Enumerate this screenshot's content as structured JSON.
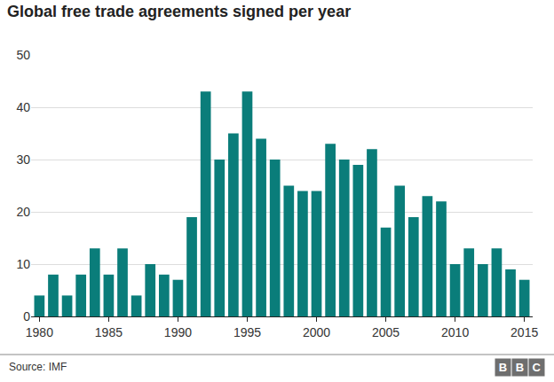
{
  "chart_data": {
    "type": "bar",
    "title": "Global free trade agreements signed per year",
    "x": [
      1980,
      1981,
      1982,
      1983,
      1984,
      1985,
      1986,
      1987,
      1988,
      1989,
      1990,
      1991,
      1992,
      1993,
      1994,
      1995,
      1996,
      1997,
      1998,
      1999,
      2000,
      2001,
      2002,
      2003,
      2004,
      2005,
      2006,
      2007,
      2008,
      2009,
      2010,
      2011,
      2012,
      2013,
      2014,
      2015
    ],
    "values": [
      4,
      8,
      4,
      8,
      13,
      8,
      13,
      4,
      10,
      8,
      7,
      19,
      43,
      30,
      35,
      43,
      34,
      30,
      25,
      24,
      24,
      33,
      30,
      29,
      32,
      17,
      25,
      19,
      23,
      22,
      10,
      13,
      10,
      13,
      9,
      7
    ],
    "color": "#0a7d7a",
    "xlim": [
      1979.4,
      2015.6
    ],
    "xticks": [
      1980,
      1985,
      1990,
      1995,
      2000,
      2005,
      2010,
      2015
    ],
    "ylim": [
      0,
      50
    ],
    "yticks": [
      0,
      10,
      20,
      30,
      40,
      50
    ],
    "grid": true,
    "source": "Source: IMF",
    "logo": "BBC"
  }
}
